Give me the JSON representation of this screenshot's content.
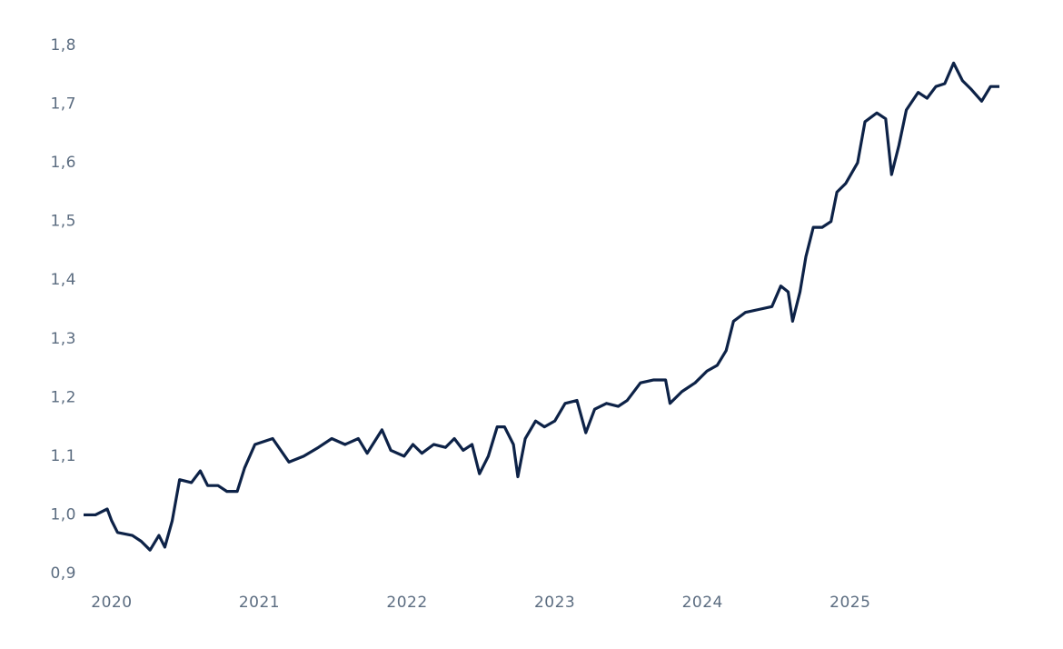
{
  "chart_data": {
    "type": "line",
    "x": [
      2019.81,
      2019.89,
      2019.97,
      2020.0,
      2020.04,
      2020.14,
      2020.2,
      2020.26,
      2020.32,
      2020.36,
      2020.41,
      2020.46,
      2020.54,
      2020.6,
      2020.65,
      2020.72,
      2020.78,
      2020.85,
      2020.9,
      2020.97,
      2021.09,
      2021.2,
      2021.3,
      2021.4,
      2021.49,
      2021.58,
      2021.67,
      2021.73,
      2021.83,
      2021.89,
      2021.98,
      2022.04,
      2022.1,
      2022.18,
      2022.26,
      2022.32,
      2022.38,
      2022.44,
      2022.49,
      2022.55,
      2022.61,
      2022.66,
      2022.72,
      2022.75,
      2022.8,
      2022.87,
      2022.93,
      2023.0,
      2023.07,
      2023.15,
      2023.21,
      2023.27,
      2023.35,
      2023.43,
      2023.49,
      2023.58,
      2023.67,
      2023.75,
      2023.78,
      2023.86,
      2023.95,
      2024.03,
      2024.1,
      2024.16,
      2024.21,
      2024.29,
      2024.38,
      2024.47,
      2024.53,
      2024.58,
      2024.61,
      2024.66,
      2024.7,
      2024.75,
      2024.81,
      2024.87,
      2024.91,
      2024.97,
      2025.05,
      2025.1,
      2025.18,
      2025.24,
      2025.28,
      2025.33,
      2025.38,
      2025.46,
      2025.52,
      2025.58,
      2025.64,
      2025.7,
      2025.76,
      2025.82,
      2025.89,
      2025.95,
      2026.01
    ],
    "series": [
      {
        "color": "#0d2247",
        "values": [
          1.0,
          1.0,
          1.01,
          0.99,
          0.97,
          0.965,
          0.955,
          0.94,
          0.965,
          0.945,
          0.99,
          1.06,
          1.055,
          1.075,
          1.05,
          1.05,
          1.04,
          1.04,
          1.08,
          1.12,
          1.13,
          1.09,
          1.1,
          1.115,
          1.13,
          1.12,
          1.13,
          1.105,
          1.145,
          1.11,
          1.1,
          1.12,
          1.105,
          1.12,
          1.115,
          1.13,
          1.11,
          1.12,
          1.07,
          1.1,
          1.15,
          1.15,
          1.12,
          1.065,
          1.13,
          1.16,
          1.15,
          1.16,
          1.19,
          1.195,
          1.14,
          1.18,
          1.19,
          1.185,
          1.195,
          1.225,
          1.23,
          1.23,
          1.19,
          1.21,
          1.225,
          1.245,
          1.255,
          1.28,
          1.33,
          1.345,
          1.35,
          1.355,
          1.39,
          1.38,
          1.33,
          1.38,
          1.44,
          1.49,
          1.49,
          1.5,
          1.55,
          1.565,
          1.6,
          1.67,
          1.685,
          1.675,
          1.58,
          1.63,
          1.69,
          1.72,
          1.71,
          1.73,
          1.735,
          1.77,
          1.74,
          1.725,
          1.705,
          1.73,
          1.73
        ]
      }
    ],
    "xlim": [
      2019.81,
      2026.01
    ],
    "xticks": [
      2020,
      2021,
      2022,
      2023,
      2024,
      2025
    ],
    "ylim": [
      0.9,
      1.8
    ],
    "yticks": [
      {
        "value": 0.9,
        "label": "0,9"
      },
      {
        "value": 1.0,
        "label": "1,0"
      },
      {
        "value": 1.1,
        "label": "1,1"
      },
      {
        "value": 1.2,
        "label": "1,2"
      },
      {
        "value": 1.3,
        "label": "1,3"
      },
      {
        "value": 1.4,
        "label": "1,4"
      },
      {
        "value": 1.5,
        "label": "1,5"
      },
      {
        "value": 1.6,
        "label": "1,6"
      },
      {
        "value": 1.7,
        "label": "1,7"
      },
      {
        "value": 1.8,
        "label": "1,8"
      }
    ],
    "grid": false
  }
}
